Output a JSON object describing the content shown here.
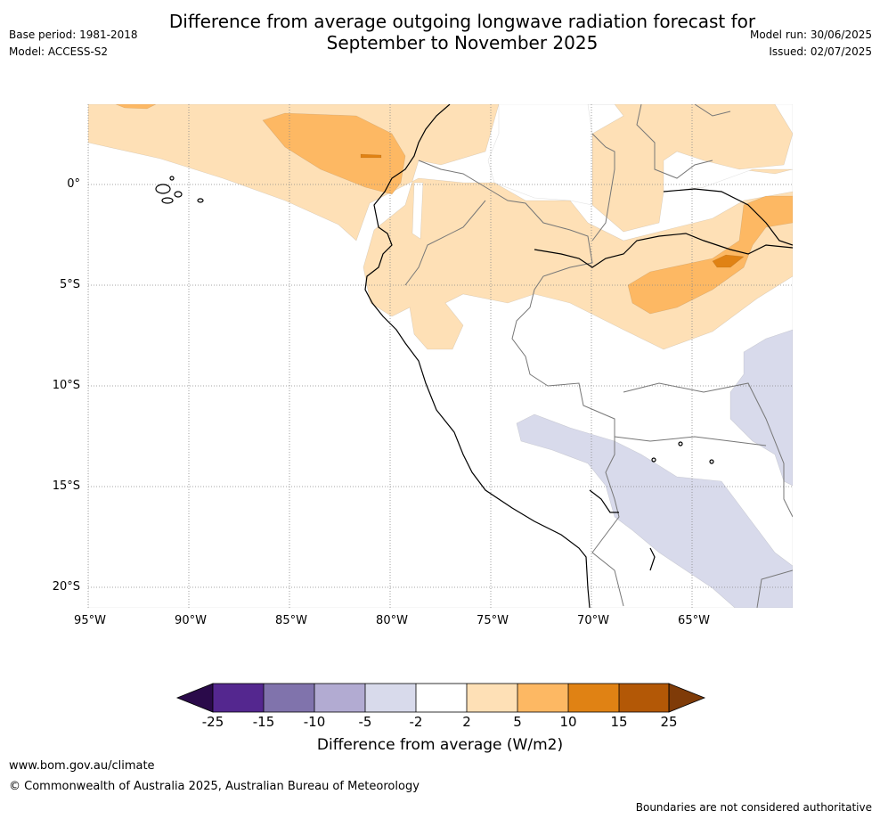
{
  "title_line1": "Difference from average outgoing longwave radiation forecast for",
  "title_line2": "September to November 2025",
  "base_period": "Base period: 1981-2018",
  "model": "Model: ACCESS-S2",
  "model_run": "Model run: 30/06/2025",
  "issued": "Issued: 02/07/2025",
  "lat_labels": [
    "0°",
    "5°S",
    "10°S",
    "15°S",
    "20°S"
  ],
  "lon_labels": [
    "95°W",
    "90°W",
    "85°W",
    "80°W",
    "75°W",
    "70°W",
    "65°W"
  ],
  "colorbar": {
    "ticks": [
      "-25",
      "-15",
      "-10",
      "-5",
      "-2",
      "2",
      "5",
      "10",
      "15",
      "25"
    ],
    "colors": {
      "under": "#2a0a4a",
      "n25_15": "#54278f",
      "n15_10": "#8073ac",
      "n10_5": "#b2abd2",
      "n5_2": "#d8daeb",
      "n2_2": "#ffffff",
      "p2_5": "#fee0b6",
      "p5_10": "#fdb863",
      "p10_15": "#e08214",
      "p15_25": "#b35806",
      "over": "#7f3b08"
    },
    "label": "Difference from average (W/m2)"
  },
  "website": "www.bom.gov.au/climate",
  "copyright": "© Commonwealth of Australia 2025, Australian Bureau of Meteorology",
  "disclaimer": "Boundaries are not considered authoritative"
}
